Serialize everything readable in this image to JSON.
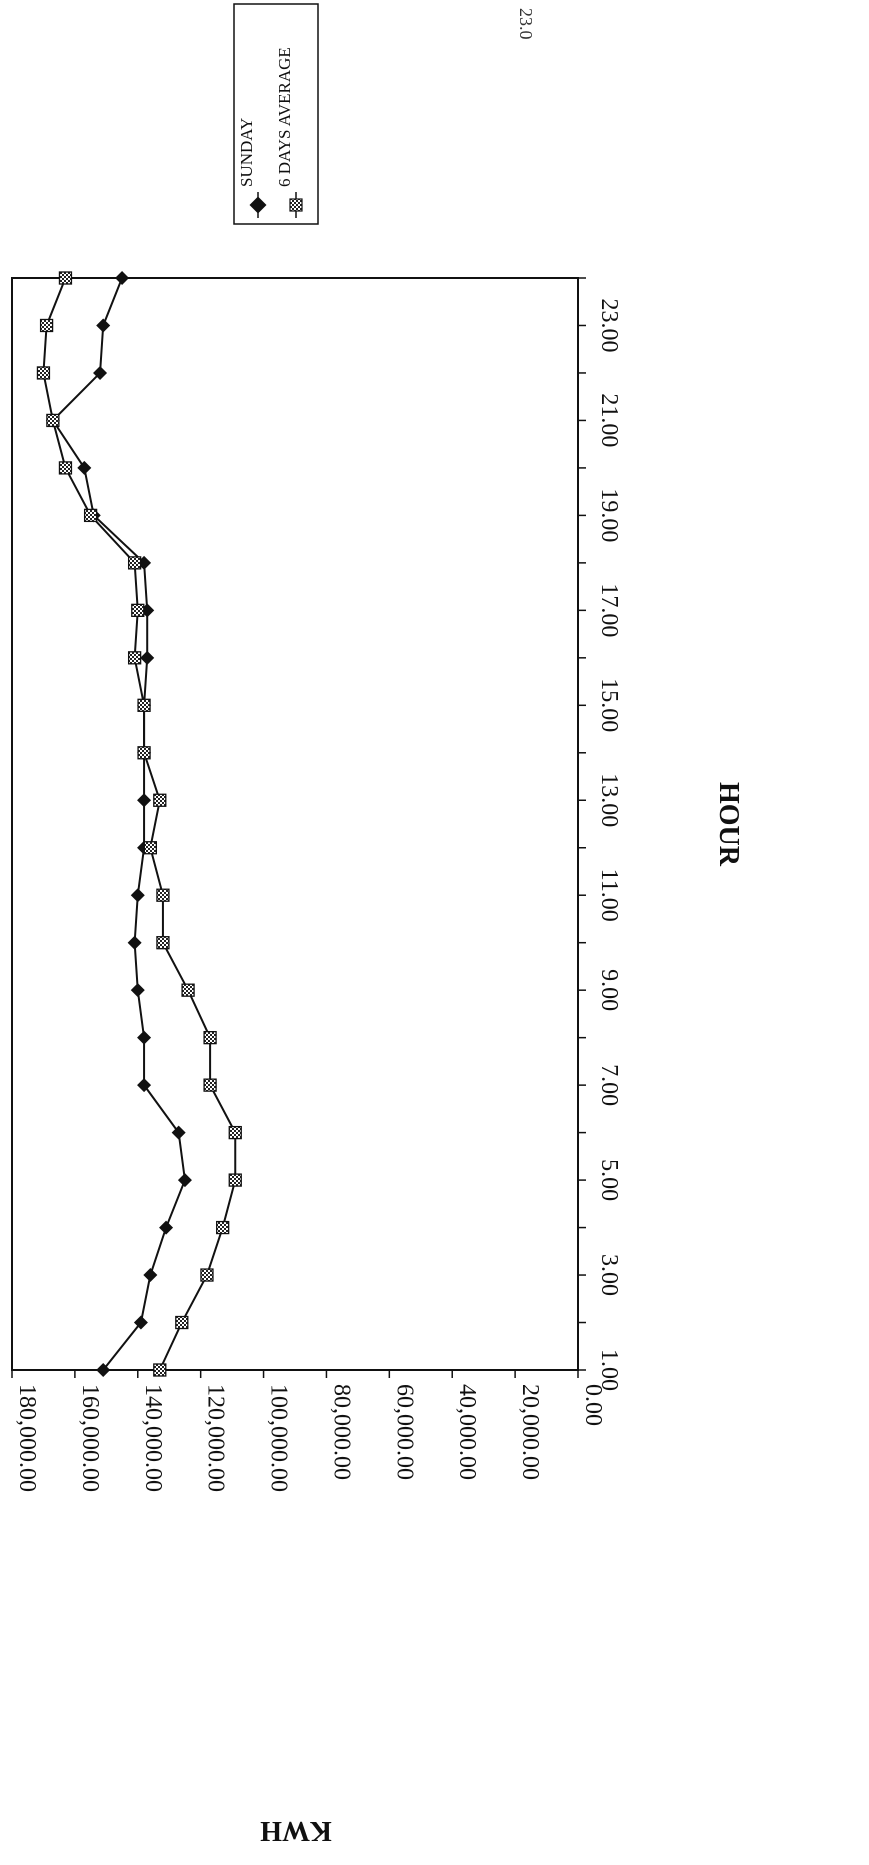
{
  "page": {
    "corner_text": "23.0"
  },
  "chart_data": {
    "type": "line",
    "orientation": "rotated 90° clockwise on page",
    "title": "",
    "xlabel": "HOUR",
    "ylabel": "KWH",
    "x": [
      1,
      2,
      3,
      4,
      5,
      6,
      7,
      8,
      9,
      10,
      11,
      12,
      13,
      14,
      15,
      16,
      17,
      18,
      19,
      20,
      21,
      22,
      23,
      24
    ],
    "x_tick_values": [
      1,
      3,
      5,
      7,
      9,
      11,
      13,
      15,
      17,
      19,
      21,
      23
    ],
    "x_tick_labels": [
      "1.00",
      "3.00",
      "5.00",
      "7.00",
      "9.00",
      "11.00",
      "13.00",
      "15.00",
      "17.00",
      "19.00",
      "21.00",
      "23.00"
    ],
    "xlim": [
      1,
      24
    ],
    "y_tick_values": [
      0,
      20000,
      40000,
      60000,
      80000,
      100000,
      120000,
      140000,
      160000,
      180000
    ],
    "y_tick_labels": [
      "0.00",
      "20,000.00",
      "40,000.00",
      "60,000.00",
      "80,000.00",
      "100,000.00",
      "120,000.00",
      "140,000.00",
      "160,000.00",
      "180,000.00"
    ],
    "ylim": [
      0,
      180000
    ],
    "grid": false,
    "legend_position": "top-right",
    "series": [
      {
        "name": "SUNDAY",
        "marker": "diamond",
        "color": "#111111",
        "values": [
          151000,
          139000,
          136000,
          131000,
          125000,
          127000,
          138000,
          138000,
          140000,
          141000,
          140000,
          138000,
          138000,
          138000,
          138000,
          137000,
          137000,
          138000,
          154000,
          157000,
          167000,
          152000,
          151000,
          145000
        ]
      },
      {
        "name": "6 DAYS AVERAGE",
        "marker": "square",
        "color": "#111111",
        "values": [
          133000,
          126000,
          118000,
          113000,
          109000,
          109000,
          117000,
          117000,
          124000,
          132000,
          132000,
          136000,
          133000,
          138000,
          138000,
          141000,
          140000,
          141000,
          155000,
          163000,
          167000,
          170000,
          169000,
          163000
        ]
      }
    ]
  }
}
